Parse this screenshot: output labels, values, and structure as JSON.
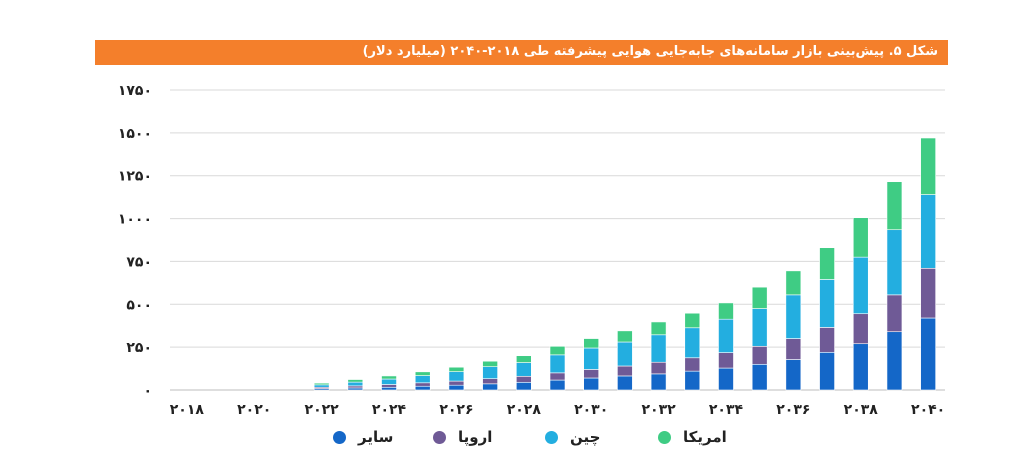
{
  "title": "شکل ۵. پیش‌بینی بازار سامانه‌های جابه‌جایی هوایی پیشرفته طی ۲۰۱۸-۲۰۴۰ (میلیارد دلار)",
  "colors": {
    "title_bg": "#f47f2b",
    "other": "#1467c8",
    "europe": "#6f5a96",
    "china": "#23aee0",
    "america": "#3fcc84"
  },
  "chart_data": {
    "type": "bar",
    "stacked": true,
    "title": "شکل ۵. پیش‌بینی بازار سامانه‌های جابه‌جایی هوایی پیشرفته طی ۲۰۱۸-۲۰۴۰ (میلیارد دلار)",
    "ylim": [
      0,
      1750
    ],
    "yticks": [
      0,
      250,
      500,
      750,
      1000,
      1250,
      1500,
      1750
    ],
    "ytick_labels": [
      "۰",
      "۲۵۰",
      "۵۰۰",
      "۷۵۰",
      "۱۰۰۰",
      "۱۲۵۰",
      "۱۵۰۰",
      "۱۷۵۰"
    ],
    "grid": true,
    "legend_position": "bottom",
    "categories": [
      "2018",
      "2019",
      "2020",
      "2021",
      "2022",
      "2023",
      "2024",
      "2025",
      "2026",
      "2027",
      "2028",
      "2029",
      "2030",
      "2031",
      "2032",
      "2033",
      "2034",
      "2035",
      "2036",
      "2037",
      "2038",
      "2039",
      "2040"
    ],
    "xtick_labels": [
      "۲۰۱۸",
      "۲۰۲۰",
      "۲۰۲۲",
      "۲۰۲۴",
      "۲۰۲۶",
      "۲۰۲۸",
      "۲۰۳۰",
      "۲۰۳۲",
      "۲۰۳۴",
      "۲۰۳۶",
      "۲۰۳۸",
      "۲۰۴۰"
    ],
    "series": [
      {
        "name": "سایر",
        "key": "other",
        "values": [
          0,
          0,
          0,
          0,
          8,
          12,
          16,
          22,
          28,
          36,
          45,
          58,
          70,
          82,
          94,
          110,
          128,
          150,
          178,
          220,
          270,
          340,
          420
        ]
      },
      {
        "name": "اروپا",
        "key": "europe",
        "values": [
          0,
          0,
          0,
          0,
          8,
          12,
          16,
          20,
          24,
          30,
          35,
          42,
          50,
          58,
          68,
          78,
          90,
          105,
          122,
          145,
          175,
          215,
          290
        ]
      },
      {
        "name": "چین",
        "key": "china",
        "values": [
          0,
          0,
          0,
          0,
          14,
          22,
          32,
          42,
          55,
          70,
          80,
          105,
          125,
          140,
          160,
          175,
          195,
          220,
          255,
          280,
          330,
          380,
          430
        ]
      },
      {
        "name": "امریکا",
        "key": "america",
        "values": [
          0,
          0,
          0,
          0,
          10,
          15,
          18,
          22,
          26,
          32,
          40,
          50,
          55,
          65,
          75,
          85,
          95,
          125,
          140,
          185,
          230,
          280,
          330
        ]
      }
    ]
  }
}
